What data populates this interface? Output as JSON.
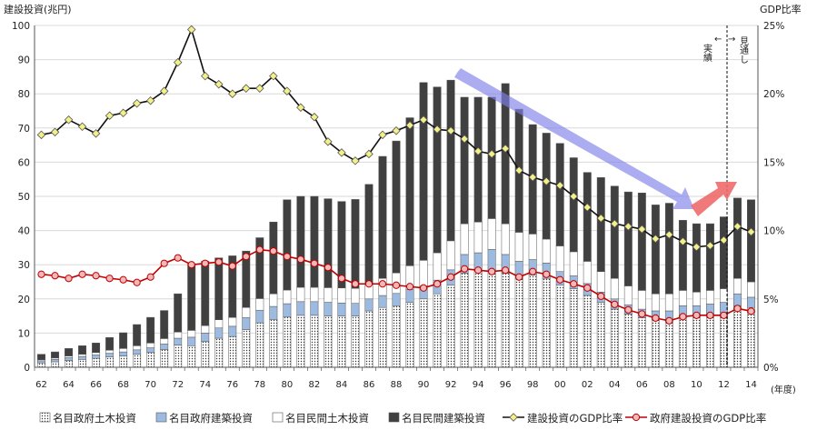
{
  "chart_data": {
    "type": "bar",
    "stacked": true,
    "ylabel_left": "建設投資(兆円)",
    "ylabel_right": "GDP比率",
    "xlabel": "(年度)",
    "ylim_left": [
      0,
      100
    ],
    "ylim_right": [
      0,
      25
    ],
    "left_ticks": [
      "0",
      "10",
      "20",
      "30",
      "40",
      "50",
      "60",
      "70",
      "80",
      "90",
      "100"
    ],
    "right_ticks": [
      "0%",
      "5%",
      "10%",
      "15%",
      "20%",
      "25%"
    ],
    "x_tick_labels": [
      "62",
      "64",
      "66",
      "68",
      "70",
      "72",
      "74",
      "76",
      "78",
      "80",
      "82",
      "84",
      "86",
      "88",
      "90",
      "92",
      "94",
      "96",
      "98",
      "00",
      "02",
      "04",
      "06",
      "08",
      "10",
      "12",
      "14"
    ],
    "years": [
      1962,
      1963,
      1964,
      1965,
      1966,
      1967,
      1968,
      1969,
      1970,
      1971,
      1972,
      1973,
      1974,
      1975,
      1976,
      1977,
      1978,
      1979,
      1980,
      1981,
      1982,
      1983,
      1984,
      1985,
      1986,
      1987,
      1988,
      1989,
      1990,
      1991,
      1992,
      1993,
      1994,
      1995,
      1996,
      1997,
      1998,
      1999,
      2000,
      2001,
      2002,
      2003,
      2004,
      2005,
      2006,
      2007,
      2008,
      2009,
      2010,
      2011,
      2012,
      2013,
      2014
    ],
    "series": [
      {
        "name": "名目政府土木投資",
        "axis": "left",
        "kind": "bar",
        "values": [
          1.3,
          1.6,
          2.0,
          2.3,
          2.6,
          3.0,
          3.3,
          3.8,
          4.3,
          5.2,
          6.5,
          6.3,
          7.5,
          8.5,
          9.0,
          11.0,
          13.0,
          14.0,
          14.8,
          15.2,
          15.2,
          15.0,
          15.0,
          15.0,
          16.5,
          17.5,
          18.0,
          19.0,
          20.0,
          21.5,
          24.0,
          27.5,
          28.0,
          28.5,
          27.5,
          26.0,
          27.0,
          26.0,
          24.0,
          23.0,
          21.0,
          19.0,
          17.0,
          15.5,
          14.5,
          14.0,
          14.0,
          15.0,
          15.0,
          15.5,
          16.0,
          18.0,
          17.5
        ]
      },
      {
        "name": "名目政府建築投資",
        "axis": "left",
        "kind": "bar",
        "values": [
          0.6,
          0.7,
          0.8,
          0.9,
          1.0,
          1.1,
          1.2,
          1.3,
          1.4,
          1.6,
          2.0,
          2.5,
          2.5,
          3.0,
          3.0,
          3.5,
          3.7,
          3.8,
          3.8,
          4.0,
          4.0,
          4.0,
          3.8,
          3.7,
          3.5,
          3.5,
          3.6,
          3.7,
          3.8,
          4.0,
          4.5,
          5.5,
          5.5,
          6.0,
          5.5,
          5.0,
          4.5,
          4.5,
          4.0,
          3.8,
          3.5,
          3.0,
          3.0,
          2.8,
          2.5,
          2.5,
          2.5,
          3.0,
          3.0,
          3.0,
          3.0,
          3.5,
          3.0
        ]
      },
      {
        "name": "名目民間土木投資",
        "axis": "left",
        "kind": "bar",
        "values": [
          0.3,
          0.4,
          0.5,
          0.6,
          0.7,
          0.9,
          1.0,
          1.2,
          1.4,
          1.6,
          1.8,
          2.0,
          2.2,
          2.4,
          2.6,
          3.0,
          3.4,
          3.7,
          4.0,
          4.2,
          4.2,
          4.3,
          4.4,
          4.4,
          4.5,
          5.0,
          6.0,
          7.0,
          7.5,
          8.0,
          8.5,
          9.0,
          9.0,
          9.0,
          9.0,
          8.5,
          7.5,
          7.0,
          7.5,
          7.0,
          6.5,
          6.0,
          6.0,
          5.5,
          5.5,
          5.0,
          5.0,
          4.5,
          4.0,
          4.0,
          4.0,
          4.5,
          4.5
        ]
      },
      {
        "name": "名目民間建築投資",
        "axis": "left",
        "kind": "bar",
        "values": [
          1.6,
          1.8,
          2.2,
          2.5,
          2.8,
          3.7,
          4.6,
          6.2,
          7.5,
          8.2,
          11.2,
          19.5,
          18.8,
          18.1,
          18.0,
          16.5,
          17.8,
          21.0,
          26.4,
          26.6,
          26.6,
          26.0,
          25.3,
          26.0,
          29.0,
          35.7,
          38.6,
          43.3,
          52.0,
          48.5,
          47.0,
          37.0,
          36.5,
          35.5,
          41.0,
          36.0,
          32.0,
          31.0,
          30.0,
          27.5,
          26.0,
          27.5,
          27.0,
          27.5,
          28.5,
          26.0,
          26.5,
          20.5,
          20.0,
          19.5,
          21.0,
          23.5,
          24.0
        ]
      },
      {
        "name": "建設投資のGDP比率",
        "axis": "right",
        "kind": "line",
        "values": [
          17.0,
          17.2,
          18.1,
          17.6,
          17.1,
          18.4,
          18.6,
          19.3,
          19.5,
          20.2,
          22.3,
          24.7,
          21.3,
          20.7,
          20.0,
          20.4,
          20.4,
          21.3,
          20.2,
          19.0,
          18.3,
          16.5,
          15.7,
          15.1,
          15.6,
          17.0,
          17.3,
          17.7,
          18.1,
          17.4,
          17.3,
          16.7,
          15.8,
          15.6,
          16.0,
          14.4,
          13.9,
          13.6,
          13.3,
          12.5,
          11.7,
          10.9,
          10.5,
          10.3,
          10.1,
          9.4,
          9.7,
          9.2,
          8.8,
          8.9,
          9.3,
          10.3,
          9.9
        ]
      },
      {
        "name": "政府建設投資のGDP比率",
        "axis": "right",
        "kind": "line",
        "values": [
          6.8,
          6.7,
          6.5,
          6.8,
          6.7,
          6.5,
          6.4,
          6.2,
          6.6,
          7.6,
          8.0,
          7.5,
          7.6,
          7.7,
          7.4,
          8.1,
          8.6,
          8.5,
          8.1,
          7.9,
          7.6,
          7.3,
          6.5,
          6.1,
          6.1,
          6.1,
          6.0,
          5.9,
          5.8,
          6.1,
          6.6,
          7.2,
          7.1,
          7.0,
          7.1,
          6.6,
          7.0,
          6.8,
          6.4,
          6.1,
          5.8,
          5.2,
          4.6,
          4.2,
          3.9,
          3.6,
          3.4,
          3.7,
          3.8,
          3.8,
          3.8,
          4.3,
          4.1
        ]
      }
    ],
    "colors": {
      "civil_gov": "#f2f2f2",
      "building_gov": "#9dbbe0",
      "civil_priv": "#ffffff",
      "building_priv": "#404040",
      "gdp_ratio_line": "#111111",
      "gdp_ratio_marker": "#f3f08a",
      "gov_ratio_line": "#c00000",
      "gov_ratio_marker": "#f0b8b8",
      "arrow_down": "#7f7fe8",
      "arrow_up": "#ee6a6a"
    },
    "annotations": {
      "actual": "実績",
      "forecast": "見通し",
      "arrow_left": "←",
      "arrow_right": "→"
    },
    "legend": {
      "placement": "bottom",
      "items": [
        "名目政府土木投資",
        "名目政府建築投資",
        "名目民間土木投資",
        "名目民間建築投資",
        "建設投資のGDP比率",
        "政府建設投資のGDP比率"
      ]
    }
  }
}
